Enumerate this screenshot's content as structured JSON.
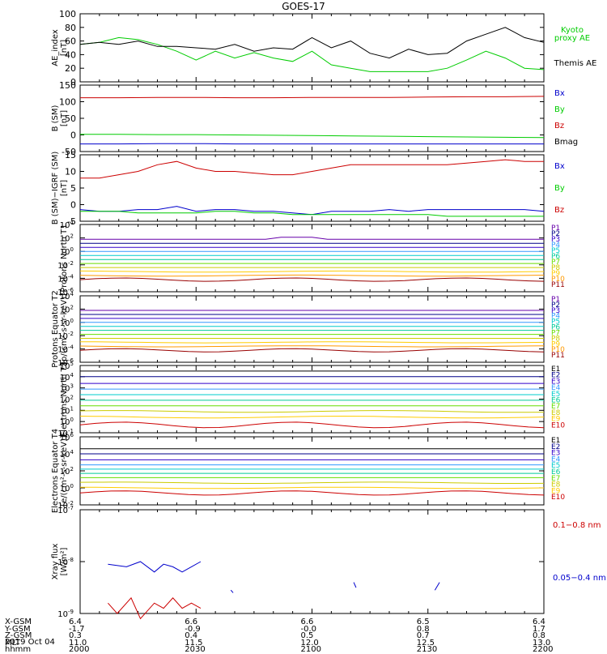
{
  "title": "GOES-17",
  "date_label": "2019 Oct 04",
  "orbit": {
    "rows": [
      {
        "name": "X-GSM",
        "values": [
          "6.4",
          "6.6",
          "6.6",
          "6.5",
          "6.4"
        ]
      },
      {
        "name": "Y-GSM",
        "values": [
          "-1.7",
          "-0.9",
          "-0.0",
          "0.8",
          "1.7"
        ]
      },
      {
        "name": "Z-GSM",
        "values": [
          "0.3",
          "0.4",
          "0.5",
          "0.7",
          "0.8"
        ]
      },
      {
        "name": "MLT",
        "values": [
          "11.0",
          "11.5",
          "12.0",
          "12.5",
          "13.0"
        ]
      },
      {
        "name": "hhmm",
        "values": [
          "2000",
          "2030",
          "2100",
          "2130",
          "2200"
        ]
      }
    ]
  },
  "colors": {
    "black": "#000000",
    "green": "#00cc00",
    "blue": "#0000cc",
    "red": "#cc0000",
    "purple": "#6600aa",
    "navy": "#000088",
    "indigo": "#3300cc",
    "sky": "#3399ff",
    "cyan": "#00cccc",
    "teal": "#00cc99",
    "lime": "#66dd00",
    "olive": "#cccc00",
    "gold": "#ffcc00",
    "orange": "#ff9900",
    "brown": "#990000",
    "darkred": "#cc0000"
  },
  "chart_data": [
    {
      "type": "line",
      "ylabel": "AE_index [nT]",
      "ylim": [
        0,
        100
      ],
      "yticks": [
        "100",
        "80",
        "60",
        "40",
        "20",
        "0"
      ],
      "x": [
        2000,
        2005,
        2010,
        2015,
        2020,
        2025,
        2030,
        2035,
        2040,
        2045,
        2050,
        2055,
        2100,
        2105,
        2110,
        2115,
        2120,
        2125,
        2130,
        2135,
        2140,
        2145,
        2150,
        2155,
        2200
      ],
      "series": [
        {
          "name": "Kyoto proxy AE",
          "color": "green",
          "values": [
            55,
            58,
            65,
            62,
            55,
            45,
            32,
            45,
            35,
            43,
            35,
            30,
            45,
            25,
            20,
            15,
            15,
            15,
            15,
            20,
            32,
            45,
            35,
            20,
            18
          ]
        },
        {
          "name": "Themis AE",
          "color": "black",
          "values": [
            55,
            58,
            55,
            60,
            52,
            52,
            50,
            48,
            55,
            45,
            50,
            48,
            65,
            50,
            60,
            42,
            35,
            48,
            40,
            42,
            60,
            70,
            80,
            65,
            58
          ]
        }
      ]
    },
    {
      "type": "line",
      "ylabel": "B (SM) [nT]",
      "ylim": [
        -50,
        150
      ],
      "yticks": [
        "150",
        "100",
        "50",
        "0",
        "-50"
      ],
      "x": [
        2000,
        2010,
        2020,
        2030,
        2040,
        2050,
        2100,
        2110,
        2120,
        2130,
        2140,
        2150,
        2200
      ],
      "series": [
        {
          "name": "Bx",
          "color": "blue",
          "values": [
            -27,
            -27,
            -26,
            -26,
            -27,
            -27,
            -27,
            -27,
            -27,
            -27,
            -27,
            -27,
            -27
          ]
        },
        {
          "name": "By",
          "color": "green",
          "values": [
            2,
            2,
            1,
            1,
            0,
            -1,
            -2,
            -3,
            -4,
            -5,
            -6,
            -7,
            -8
          ]
        },
        {
          "name": "Bz",
          "color": "red",
          "values": [
            112,
            112,
            113,
            113,
            112,
            112,
            113,
            113,
            113,
            114,
            115,
            115,
            116
          ]
        },
        {
          "name": "Bmag",
          "color": "black",
          "values": [
            113,
            113,
            114,
            114,
            113,
            113,
            114,
            114,
            114,
            115,
            116,
            116,
            117
          ]
        }
      ]
    },
    {
      "type": "line",
      "ylabel": "B (SM)−IGRF (SM) [nT]",
      "ylim": [
        -5,
        15
      ],
      "yticks": [
        "15",
        "10",
        "5",
        "0",
        "-5"
      ],
      "x": [
        2000,
        2005,
        2010,
        2015,
        2020,
        2025,
        2030,
        2035,
        2040,
        2045,
        2050,
        2055,
        2100,
        2105,
        2110,
        2115,
        2120,
        2125,
        2130,
        2135,
        2140,
        2145,
        2150,
        2155,
        2200
      ],
      "series": [
        {
          "name": "Bx",
          "color": "blue",
          "values": [
            -1.5,
            -2,
            -2,
            -1.5,
            -1.5,
            -0.5,
            -2,
            -1.5,
            -1.5,
            -2,
            -2,
            -2.5,
            -3,
            -2,
            -2,
            -2,
            -1.5,
            -2,
            -1.5,
            -1.5,
            -1.5,
            -1.5,
            -1.5,
            -1.5,
            -2
          ]
        },
        {
          "name": "By",
          "color": "green",
          "values": [
            -2,
            -2,
            -2,
            -2.5,
            -2.5,
            -2.5,
            -2.5,
            -2,
            -2,
            -2.5,
            -2.5,
            -3,
            -3,
            -3,
            -3,
            -3,
            -3,
            -3,
            -3,
            -3.5,
            -3.5,
            -3.5,
            -3.5,
            -3.5,
            -3.5
          ]
        },
        {
          "name": "Bz",
          "color": "red",
          "values": [
            8,
            8,
            9,
            10,
            12,
            13,
            11,
            10,
            10,
            9.5,
            9,
            9,
            10,
            11,
            12,
            12,
            12,
            12,
            12,
            12,
            12.5,
            13,
            13.5,
            13,
            13
          ]
        }
      ]
    },
    {
      "type": "line",
      "ylabel": "Protons North T1",
      "yscale": "log",
      "ylim": [
        -6,
        4
      ],
      "ytick_exponents": [
        4,
        2,
        0,
        -2,
        -4,
        -6
      ],
      "channels": [
        "P1",
        "P2",
        "P3",
        "P4",
        "P5",
        "P6",
        "P7",
        "P8",
        "P9",
        "P10",
        "P11"
      ],
      "levels_log10": [
        1.8,
        1.2,
        0.6,
        0.0,
        -0.6,
        -1.2,
        -1.8,
        -2.4,
        -3.0,
        -3.6,
        -4.2
      ]
    },
    {
      "type": "line",
      "ylabel": "Protons Equator T2 [p/(cm²-s-sr-keV)]",
      "yscale": "log",
      "ylim": [
        -6,
        4
      ],
      "ytick_exponents": [
        4,
        2,
        0,
        -2,
        -4,
        -6
      ],
      "channels": [
        "P1",
        "P2",
        "P3",
        "P4",
        "P5",
        "P6",
        "P7",
        "P8",
        "P9",
        "P10",
        "P11"
      ],
      "levels_log10": [
        1.8,
        1.2,
        0.6,
        0.0,
        -0.6,
        -1.2,
        -1.8,
        -2.4,
        -3.0,
        -3.6,
        -4.2
      ]
    },
    {
      "type": "line",
      "ylabel": "Electrons North T3",
      "yscale": "log",
      "ylim": [
        -1,
        5
      ],
      "ytick_exponents": [
        5,
        4,
        3,
        2,
        1,
        0,
        -1
      ],
      "channels": [
        "E1",
        "E2",
        "E3",
        "E4",
        "E5",
        "E6",
        "E7",
        "E8",
        "E9",
        "E10"
      ],
      "levels_log10": [
        4.5,
        4.0,
        3.4,
        2.9,
        2.4,
        1.9,
        1.4,
        0.9,
        0.4,
        -0.3
      ]
    },
    {
      "type": "line",
      "ylabel": "Electrons Equator T4 [e/(cm²-s-sr-keV)]",
      "yscale": "log",
      "ylim": [
        -2,
        6
      ],
      "ytick_exponents": [
        6,
        4,
        2,
        0,
        -2
      ],
      "channels": [
        "E1",
        "E2",
        "E3",
        "E4",
        "E5",
        "E6",
        "E7",
        "E8",
        "E9",
        "E10"
      ],
      "levels_log10": [
        4.6,
        4.0,
        3.3,
        2.7,
        2.2,
        1.7,
        1.2,
        0.6,
        0.0,
        -0.6
      ]
    },
    {
      "type": "line",
      "ylabel": "Xray flux [W/m²]",
      "yscale": "log",
      "ylim": [
        -9,
        -7
      ],
      "ytick_exponents": [
        -7,
        -8,
        -9
      ],
      "series": [
        {
          "name": "0.1−0.8 nm",
          "color": "red"
        },
        {
          "name": "0.05−0.4 nm",
          "color": "blue"
        }
      ]
    }
  ]
}
